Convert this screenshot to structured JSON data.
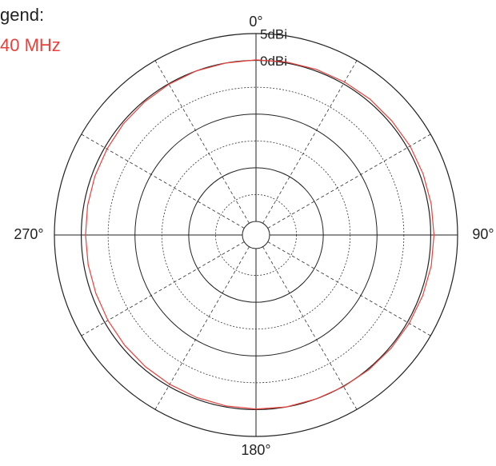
{
  "chart_data": {
    "type": "polar",
    "legend_title": "gend:",
    "theta": [
      0,
      10,
      20,
      30,
      40,
      50,
      60,
      70,
      80,
      90,
      100,
      110,
      120,
      130,
      140,
      150,
      160,
      170,
      180,
      190,
      200,
      210,
      220,
      230,
      240,
      250,
      260,
      270,
      280,
      290,
      300,
      310,
      320,
      330,
      340,
      350
    ],
    "series": [
      {
        "name": "40 MHz",
        "color": "#e8413c",
        "values": [
          0.1,
          0.2,
          0.3,
          0.4,
          0.5,
          0.5,
          0.6,
          0.6,
          0.6,
          0.6,
          0.6,
          0.5,
          0.4,
          0.3,
          0.2,
          0.1,
          0.0,
          0.0,
          -0.1,
          -0.2,
          -0.3,
          -0.4,
          -0.5,
          -0.6,
          -0.7,
          -0.8,
          -0.8,
          -0.8,
          -0.7,
          -0.6,
          -0.5,
          -0.3,
          -0.2,
          -0.1,
          0.0,
          0.0
        ]
      }
    ],
    "rlim": [
      -30,
      5
    ],
    "rticks": [
      {
        "value": 5,
        "label": "5dBi"
      },
      {
        "value": 0,
        "label": "0dBi"
      }
    ],
    "rings_solid": [
      -10,
      -20,
      -30
    ],
    "rings_dashed": [
      -5,
      -15,
      -25
    ],
    "spokes_dashed": [
      30,
      60,
      120,
      150,
      210,
      240,
      300,
      330
    ],
    "thetaticks": [
      {
        "value": 0,
        "label": "0°"
      },
      {
        "value": 90,
        "label": "90°"
      },
      {
        "value": 180,
        "label": "180°"
      },
      {
        "value": 270,
        "label": "270°"
      }
    ]
  }
}
